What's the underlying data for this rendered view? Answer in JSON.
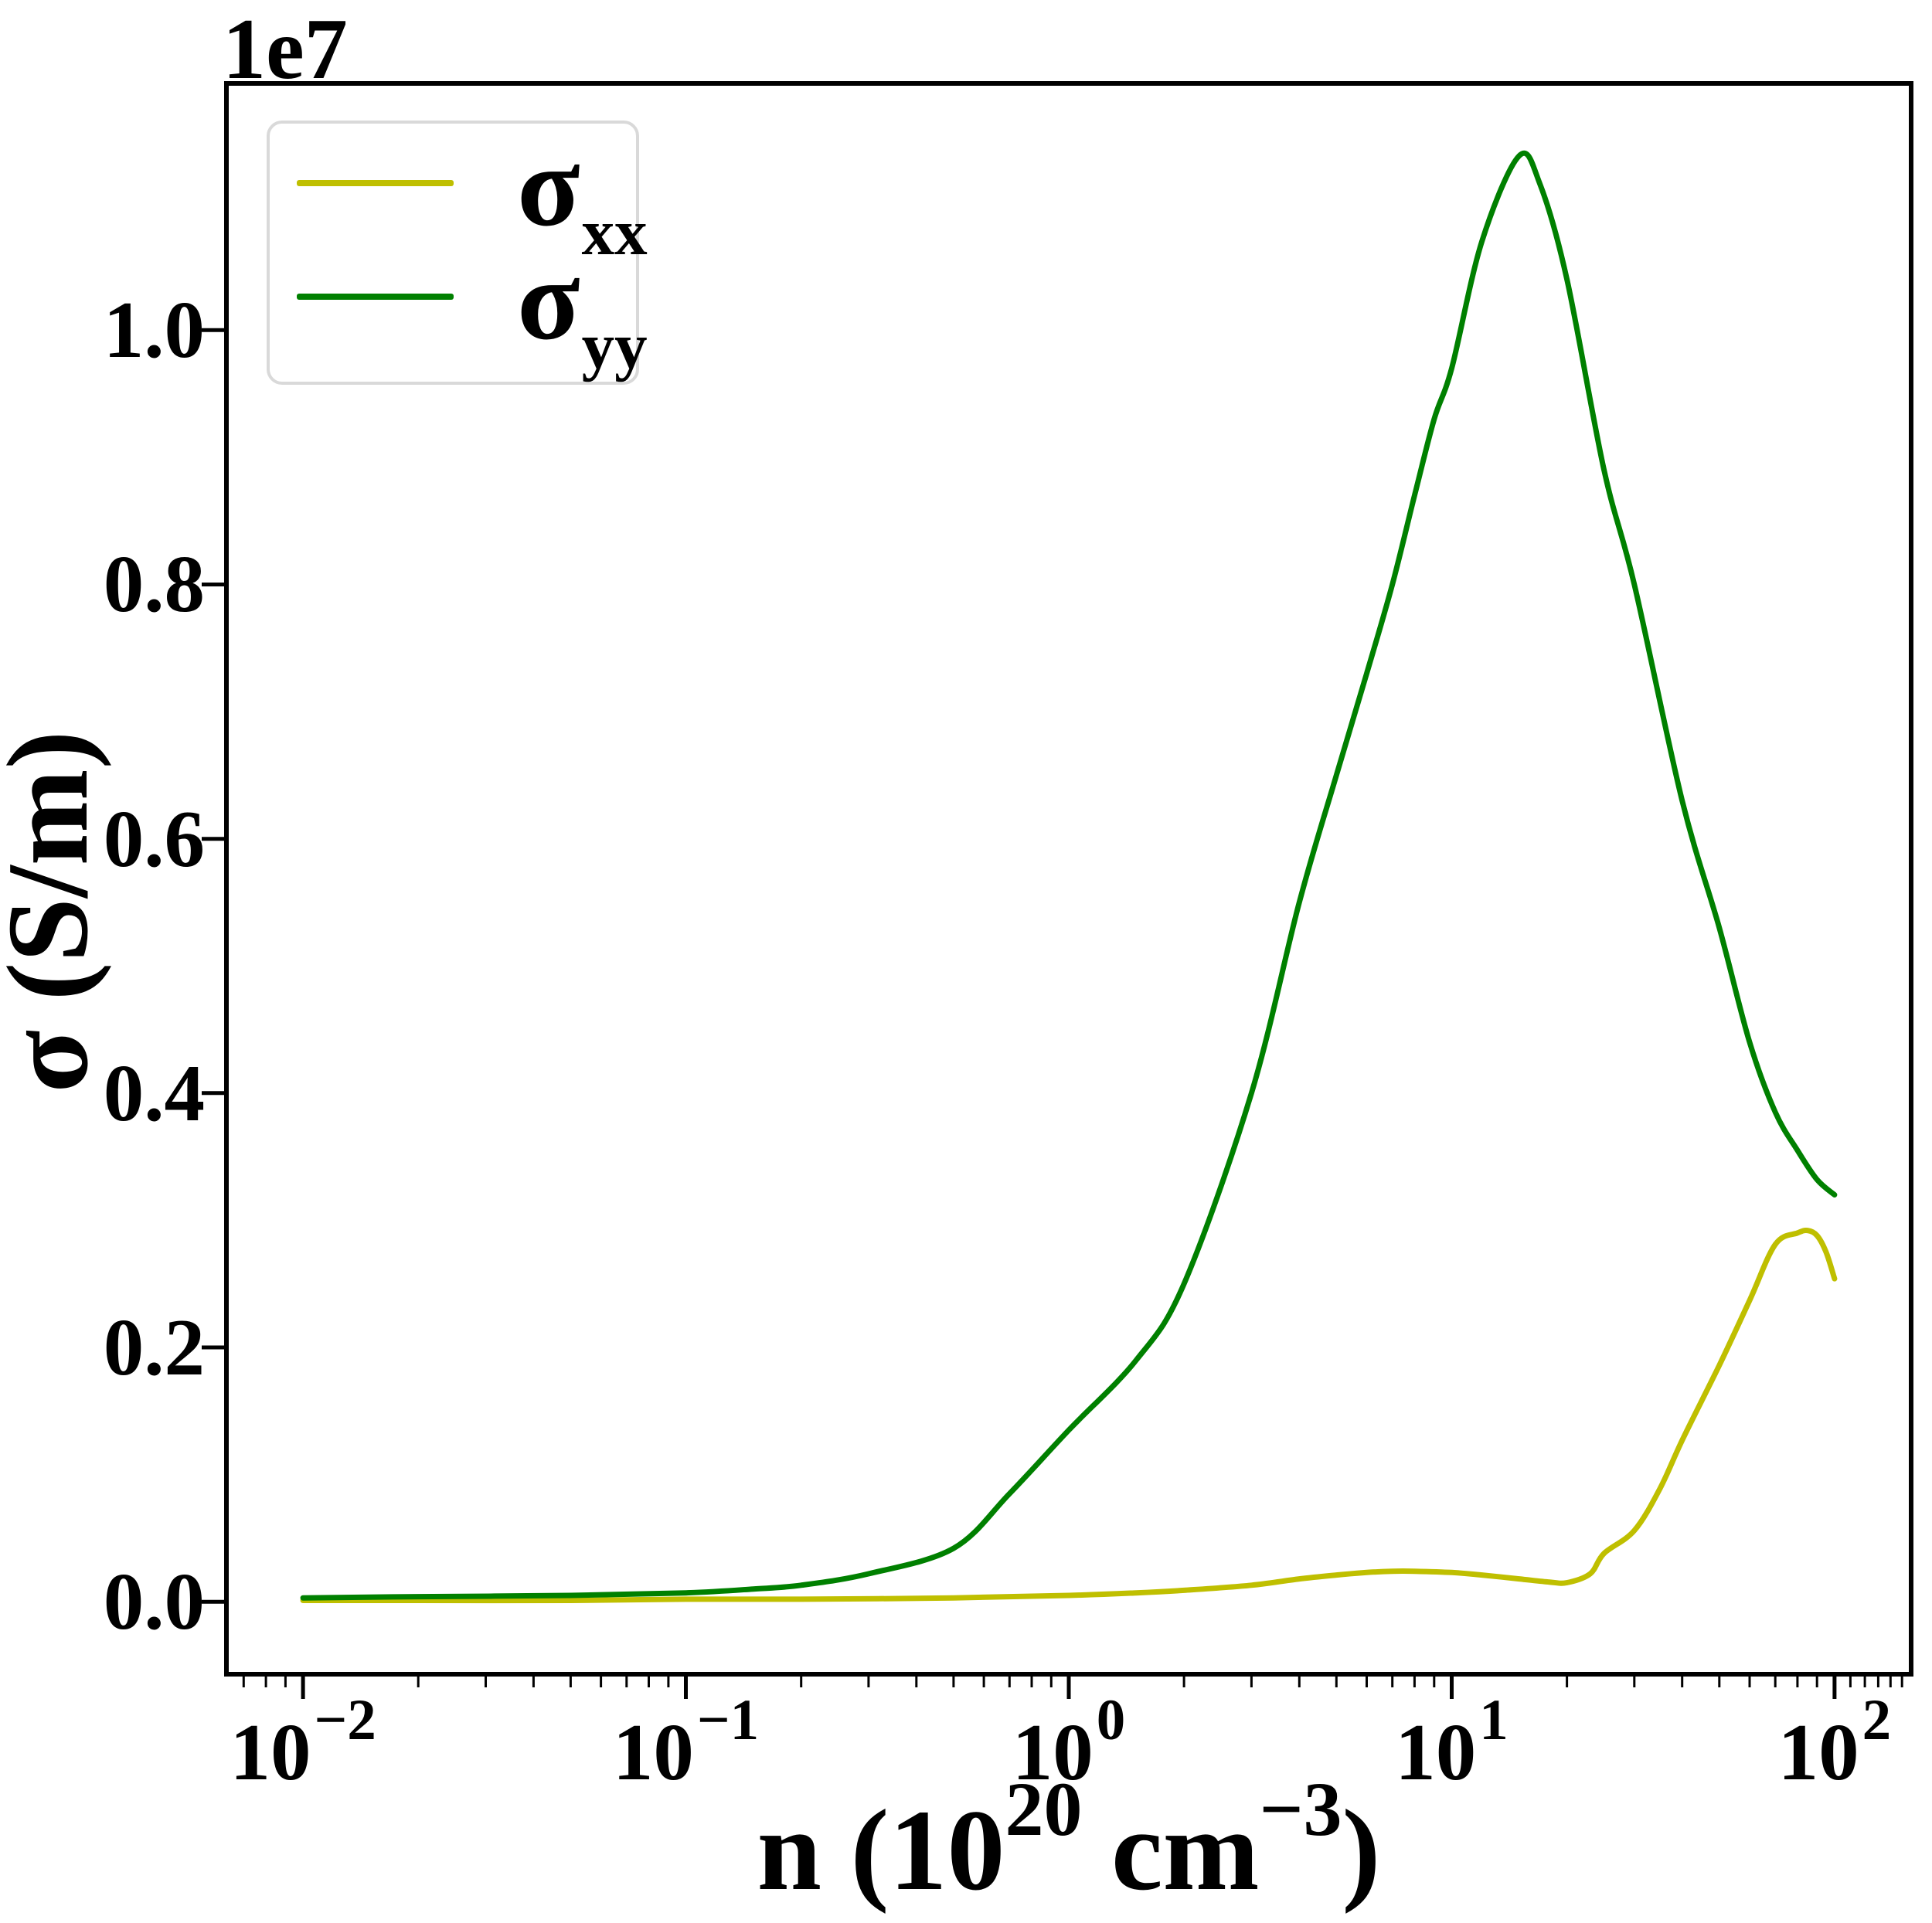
{
  "figure": {
    "background": "#ffffff",
    "offset_label": "1e7"
  },
  "axes": {
    "xlabel": {
      "prefix": "n (10",
      "exp1": "20",
      "mid": " cm",
      "exp2": "−3",
      "suffix": ")"
    },
    "ylabel": {
      "text": "σ (S/m)"
    },
    "x_ticks": [
      {
        "base": "10",
        "exp": "−2",
        "value": 0.01
      },
      {
        "base": "10",
        "exp": "−1",
        "value": 0.1
      },
      {
        "base": "10",
        "exp": "0",
        "value": 1
      },
      {
        "base": "10",
        "exp": "1",
        "value": 10
      },
      {
        "base": "10",
        "exp": "2",
        "value": 100
      }
    ],
    "x_minor_ticks": [
      0.007,
      0.008,
      0.009,
      0.02,
      0.03,
      0.04,
      0.05,
      0.06,
      0.07,
      0.08,
      0.09,
      0.2,
      0.3,
      0.4,
      0.5,
      0.6,
      0.7,
      0.8,
      0.9,
      2,
      3,
      4,
      5,
      6,
      7,
      8,
      9,
      20,
      30,
      40,
      50,
      60,
      70,
      80,
      90,
      110,
      120,
      130,
      140,
      150
    ],
    "y_ticks": [
      {
        "label": "0.0",
        "value": 0.0
      },
      {
        "label": "0.2",
        "value": 0.2
      },
      {
        "label": "0.4",
        "value": 0.4
      },
      {
        "label": "0.6",
        "value": 0.6
      },
      {
        "label": "0.8",
        "value": 0.8
      },
      {
        "label": "1.0",
        "value": 1.0
      }
    ],
    "xlim_log10": [
      -2.2,
      2.2
    ],
    "ylim_1e7": [
      -0.057,
      1.194
    ]
  },
  "legend": {
    "entries": [
      {
        "symbol": "σ",
        "subscript": "xx",
        "color": "#bfbf00"
      },
      {
        "symbol": "σ",
        "subscript": "yy",
        "color": "#008000"
      }
    ]
  },
  "chart_data": {
    "type": "line",
    "title": "",
    "xlabel": "n (10^20 cm^-3)",
    "ylabel": "σ (S/m)",
    "x_scale": "log",
    "x_range": [
      0.01,
      100
    ],
    "y_unit": "1e7 S/m",
    "offset_multiplier": 10000000,
    "grid": false,
    "legend_position": "upper left",
    "series": [
      {
        "id": "sigma_xx",
        "name": "σ_xx",
        "color": "#bfbf00",
        "x": [
          0.01,
          0.02,
          0.05,
          0.1,
          0.2,
          0.5,
          1.0,
          1.5,
          2.0,
          3.0,
          4.0,
          5.0,
          6.0,
          7.0,
          8.0,
          10,
          12,
          15,
          18,
          20,
          23,
          25,
          30,
          35,
          40,
          50,
          60,
          70,
          80,
          85,
          90,
          95,
          100
        ],
        "y_1e7": [
          0.001,
          0.001,
          0.001,
          0.002,
          0.002,
          0.003,
          0.005,
          0.007,
          0.009,
          0.013,
          0.018,
          0.021,
          0.023,
          0.024,
          0.024,
          0.023,
          0.021,
          0.018,
          0.0155,
          0.015,
          0.022,
          0.038,
          0.056,
          0.089,
          0.127,
          0.186,
          0.237,
          0.281,
          0.29,
          0.292,
          0.288,
          0.275,
          0.254
        ]
      },
      {
        "id": "sigma_yy",
        "name": "σ_yy",
        "color": "#008000",
        "x": [
          0.01,
          0.02,
          0.05,
          0.1,
          0.15,
          0.2,
          0.3,
          0.5,
          0.7,
          1.0,
          1.5,
          2.0,
          3.0,
          4.0,
          5.0,
          6.0,
          7.0,
          8.0,
          9.0,
          10,
          12,
          15,
          17,
          20,
          25,
          30,
          40,
          50,
          60,
          70,
          80,
          90,
          100
        ],
        "y_1e7": [
          0.003,
          0.004,
          0.005,
          0.007,
          0.01,
          0.013,
          0.022,
          0.042,
          0.085,
          0.135,
          0.19,
          0.25,
          0.4,
          0.55,
          0.65,
          0.73,
          0.8,
          0.87,
          0.93,
          0.97,
          1.07,
          1.137,
          1.115,
          1.04,
          0.89,
          0.8,
          0.63,
          0.53,
          0.44,
          0.385,
          0.355,
          0.332,
          0.32
        ]
      }
    ]
  }
}
